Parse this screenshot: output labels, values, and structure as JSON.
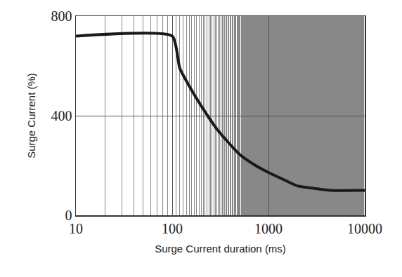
{
  "chart_data": {
    "type": "line",
    "x": [
      10,
      100,
      120,
      150,
      200,
      300,
      500,
      700,
      1000,
      1500,
      2000,
      3000,
      4500,
      10000
    ],
    "values": [
      720,
      720,
      590,
      520,
      440,
      340,
      245,
      205,
      172,
      140,
      118,
      108,
      100,
      100
    ],
    "color": "#1a1a1a",
    "x_label": "Surge Current duration (ms)",
    "y_label": "Surge Current (%)",
    "xlim": [
      10,
      10000
    ],
    "ylim": [
      0,
      800
    ],
    "xticks": [
      10,
      100,
      1000,
      10000
    ],
    "yticks": [
      0,
      400,
      800
    ],
    "log": "x",
    "grid": true
  }
}
